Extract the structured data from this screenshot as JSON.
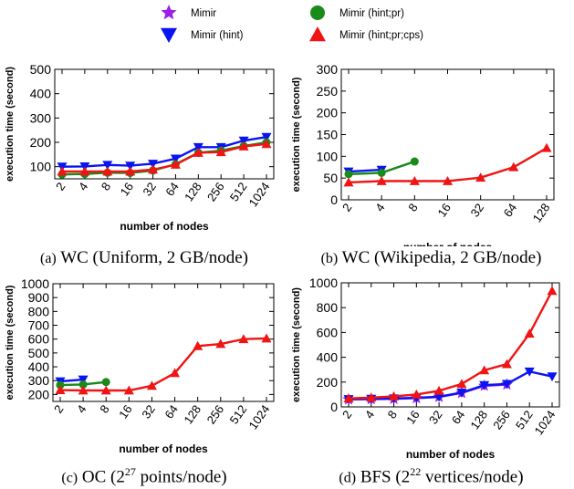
{
  "legend": [
    {
      "name": "Mimir",
      "color": "#9b1fe8",
      "marker": "star"
    },
    {
      "name": "Mimir (hint)",
      "color": "#0a14f0",
      "marker": "triangle-down"
    },
    {
      "name": "Mimir (hint;pr)",
      "color": "#1a8a1a",
      "marker": "circle"
    },
    {
      "name": "Mimir (hint;pr;cps)",
      "color": "#f01414",
      "marker": "triangle-up"
    }
  ],
  "chart_data": [
    {
      "type": "line",
      "caption_prefix": "(a)",
      "caption": "WC (Uniform, 2 GB/node)",
      "xlabel": "number of nodes",
      "ylabel": "execution time (second)",
      "categories": [
        "2",
        "4",
        "8",
        "16",
        "32",
        "64",
        "128",
        "256",
        "512",
        "1024"
      ],
      "ylim": [
        50,
        500
      ],
      "yticks": [
        100,
        200,
        300,
        400,
        500
      ],
      "series": [
        {
          "name": "Mimir (hint)",
          "values": [
            100,
            101,
            107,
            104,
            112,
            133,
            180,
            180,
            207,
            222
          ]
        },
        {
          "name": "Mimir (hint;pr)",
          "values": [
            68,
            70,
            75,
            74,
            84,
            110,
            157,
            166,
            185,
            200
          ]
        },
        {
          "name": "Mimir (hint;pr;cps)",
          "values": [
            80,
            80,
            80,
            80,
            88,
            108,
            157,
            160,
            183,
            193
          ]
        }
      ]
    },
    {
      "type": "line",
      "caption_prefix": "(b)",
      "caption": "WC (Wikipedia, 2 GB/node)",
      "xlabel": "number of nodes",
      "ylabel": "execution time (second)",
      "categories": [
        "2",
        "4",
        "8",
        "16",
        "32",
        "64",
        "128"
      ],
      "ylim": [
        0,
        300
      ],
      "yticks": [
        0,
        50,
        100,
        150,
        200,
        250,
        300
      ],
      "series": [
        {
          "name": "Mimir (hint)",
          "values": [
            65,
            69,
            null,
            null,
            null,
            null,
            null
          ]
        },
        {
          "name": "Mimir (hint;pr)",
          "values": [
            59,
            62,
            88,
            null,
            null,
            null,
            null
          ]
        },
        {
          "name": "Mimir (hint;pr;cps)",
          "values": [
            40,
            43,
            43,
            43,
            51,
            75,
            119
          ]
        }
      ]
    },
    {
      "type": "line",
      "caption_prefix": "(c)",
      "caption_parts": [
        "OC (2",
        "27",
        " points/node)"
      ],
      "xlabel": "number of nodes",
      "ylabel": "execution time (second)",
      "categories": [
        "2",
        "4",
        "8",
        "16",
        "32",
        "64",
        "128",
        "256",
        "512",
        "1024"
      ],
      "ylim": [
        150,
        1000
      ],
      "yticks": [
        200,
        300,
        400,
        500,
        600,
        700,
        800,
        900,
        1000
      ],
      "series": [
        {
          "name": "Mimir (hint)",
          "values": [
            295,
            308,
            null,
            null,
            null,
            null,
            null,
            null,
            null,
            null
          ]
        },
        {
          "name": "Mimir (hint;pr)",
          "values": [
            268,
            272,
            290,
            null,
            null,
            null,
            null,
            null,
            null,
            null
          ]
        },
        {
          "name": "Mimir (hint;pr;cps)",
          "values": [
            232,
            229,
            229,
            229,
            263,
            355,
            550,
            565,
            600,
            605
          ]
        }
      ]
    },
    {
      "type": "line",
      "caption_prefix": "(d)",
      "caption_parts": [
        "BFS (2",
        "22",
        " vertices/node)"
      ],
      "xlabel": "number of nodes",
      "ylabel": "execution time (second)",
      "categories": [
        "2",
        "4",
        "8",
        "16",
        "32",
        "64",
        "128",
        "256",
        "512",
        "1024"
      ],
      "ylim": [
        0,
        1000
      ],
      "yticks": [
        0,
        200,
        400,
        600,
        800,
        1000
      ],
      "series": [
        {
          "name": "Mimir",
          "values": [
            60,
            62,
            65,
            70,
            80,
            112,
            170,
            180,
            null,
            null
          ]
        },
        {
          "name": "Mimir (hint)",
          "values": [
            62,
            65,
            68,
            73,
            82,
            115,
            175,
            185,
            285,
            245
          ]
        },
        {
          "name": "Mimir (hint;pr;cps)",
          "values": [
            68,
            75,
            85,
            100,
            130,
            185,
            295,
            345,
            590,
            935
          ]
        }
      ]
    }
  ]
}
